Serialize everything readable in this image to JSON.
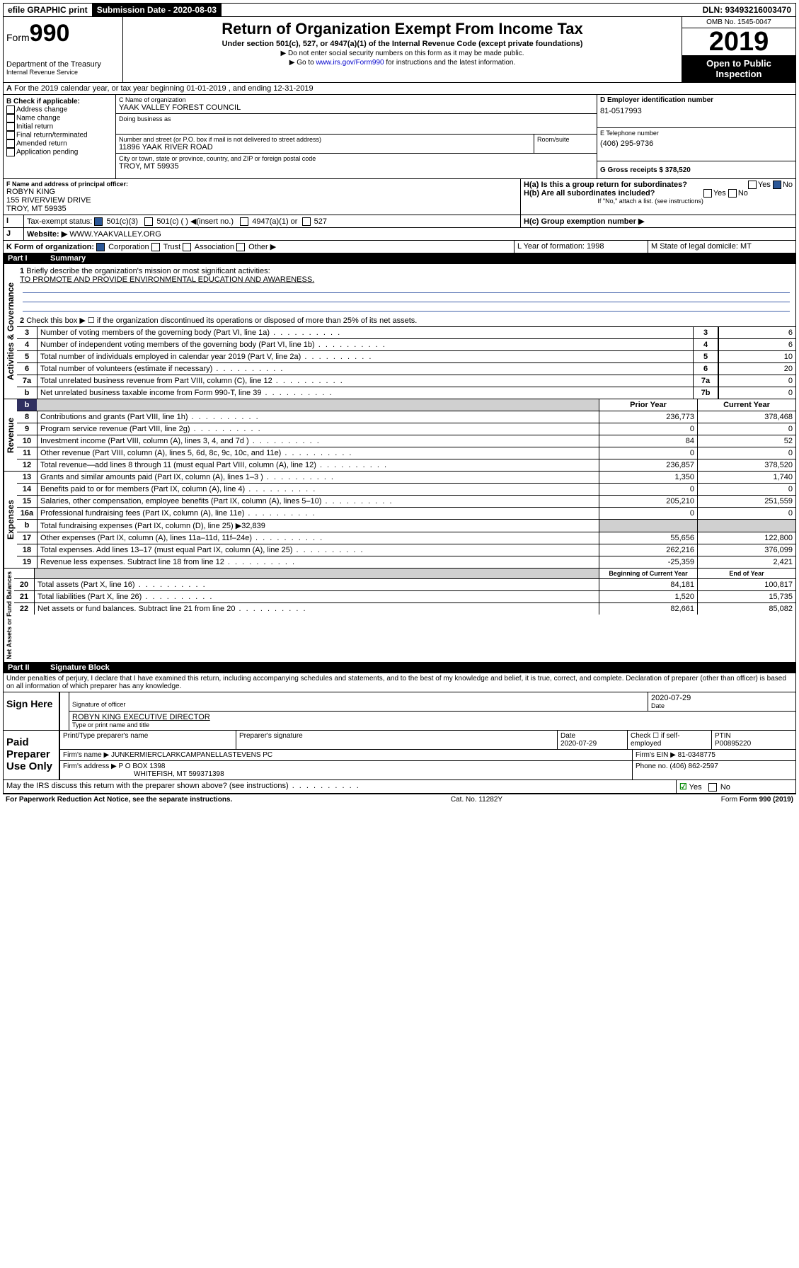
{
  "topbar": {
    "efile": "efile GRAPHIC print",
    "sub_label": "Submission Date - 2020-08-03",
    "dln": "DLN: 93493216003470"
  },
  "header": {
    "form_word": "Form",
    "form_num": "990",
    "title": "Return of Organization Exempt From Income Tax",
    "subtitle": "Under section 501(c), 527, or 4947(a)(1) of the Internal Revenue Code (except private foundations)",
    "instr1": "▶ Do not enter social security numbers on this form as it may be made public.",
    "instr2_pre": "▶ Go to ",
    "instr2_link": "www.irs.gov/Form990",
    "instr2_post": " for instructions and the latest information.",
    "dept1": "Department of the Treasury",
    "dept2": "Internal Revenue Service",
    "omb": "OMB No. 1545-0047",
    "year": "2019",
    "open": "Open to Public Inspection"
  },
  "period": {
    "line_a": "For the 2019 calendar year, or tax year beginning 01-01-2019    , and ending 12-31-2019"
  },
  "boxB": {
    "label": "B Check if applicable:",
    "opts": [
      "Address change",
      "Name change",
      "Initial return",
      "Final return/terminated",
      "Amended return",
      "Application pending"
    ]
  },
  "boxC": {
    "name_label": "C Name of organization",
    "name": "YAAK VALLEY FOREST COUNCIL",
    "dba_label": "Doing business as",
    "addr_label": "Number and street (or P.O. box if mail is not delivered to street address)",
    "room_label": "Room/suite",
    "addr": "11896 YAAK RIVER ROAD",
    "city_label": "City or town, state or province, country, and ZIP or foreign postal code",
    "city": "TROY, MT  59935"
  },
  "boxD": {
    "label": "D Employer identification number",
    "val": "81-0517993"
  },
  "boxE": {
    "label": "E Telephone number",
    "val": "(406) 295-9736"
  },
  "boxG": {
    "label": "G Gross receipts $ 378,520"
  },
  "boxF": {
    "label": "F  Name and address of principal officer:",
    "name": "ROBYN KING",
    "addr1": "155 RIVERVIEW DRIVE",
    "addr2": "TROY, MT  59935"
  },
  "boxH": {
    "a": "H(a)  Is this a group return for subordinates?",
    "b": "H(b)  Are all subordinates included?",
    "note": "If \"No,\" attach a list. (see instructions)",
    "c": "H(c)  Group exemption number ▶",
    "yes": "Yes",
    "no": "No"
  },
  "boxI": {
    "label": "Tax-exempt status:",
    "o1": "501(c)(3)",
    "o2": "501(c) (  ) ◀(insert no.)",
    "o3": "4947(a)(1) or",
    "o4": "527"
  },
  "boxJ": {
    "label": "Website: ▶",
    "val": "WWW.YAAKVALLEY.ORG"
  },
  "boxK": {
    "label": "K Form of organization:",
    "o1": "Corporation",
    "o2": "Trust",
    "o3": "Association",
    "o4": "Other ▶"
  },
  "boxL": {
    "label": "L Year of formation: 1998"
  },
  "boxM": {
    "label": "M State of legal domicile: MT"
  },
  "part1": {
    "num": "Part I",
    "title": "Summary"
  },
  "summary": {
    "l1_label": "Briefly describe the organization's mission or most significant activities:",
    "l1_text": "TO PROMOTE AND PROVIDE ENVIRONMENTAL EDUCATION AND AWARENESS.",
    "l2": "Check this box ▶ ☐  if the organization discontinued its operations or disposed of more than 25% of its net assets.",
    "lines": [
      {
        "n": "3",
        "t": "Number of voting members of the governing body (Part VI, line 1a)",
        "b": "3",
        "v": "6"
      },
      {
        "n": "4",
        "t": "Number of independent voting members of the governing body (Part VI, line 1b)",
        "b": "4",
        "v": "6"
      },
      {
        "n": "5",
        "t": "Total number of individuals employed in calendar year 2019 (Part V, line 2a)",
        "b": "5",
        "v": "10"
      },
      {
        "n": "6",
        "t": "Total number of volunteers (estimate if necessary)",
        "b": "6",
        "v": "20"
      },
      {
        "n": "7a",
        "t": "Total unrelated business revenue from Part VIII, column (C), line 12",
        "b": "7a",
        "v": "0"
      },
      {
        "n": "b",
        "t": "Net unrelated business taxable income from Form 990-T, line 39",
        "b": "7b",
        "v": "0"
      }
    ],
    "col_prior": "Prior Year",
    "col_curr": "Current Year",
    "rev": [
      {
        "n": "8",
        "t": "Contributions and grants (Part VIII, line 1h)",
        "p": "236,773",
        "c": "378,468"
      },
      {
        "n": "9",
        "t": "Program service revenue (Part VIII, line 2g)",
        "p": "0",
        "c": "0"
      },
      {
        "n": "10",
        "t": "Investment income (Part VIII, column (A), lines 3, 4, and 7d )",
        "p": "84",
        "c": "52"
      },
      {
        "n": "11",
        "t": "Other revenue (Part VIII, column (A), lines 5, 6d, 8c, 9c, 10c, and 11e)",
        "p": "0",
        "c": "0"
      },
      {
        "n": "12",
        "t": "Total revenue—add lines 8 through 11 (must equal Part VIII, column (A), line 12)",
        "p": "236,857",
        "c": "378,520"
      }
    ],
    "exp": [
      {
        "n": "13",
        "t": "Grants and similar amounts paid (Part IX, column (A), lines 1–3 )",
        "p": "1,350",
        "c": "1,740"
      },
      {
        "n": "14",
        "t": "Benefits paid to or for members (Part IX, column (A), line 4)",
        "p": "0",
        "c": "0"
      },
      {
        "n": "15",
        "t": "Salaries, other compensation, employee benefits (Part IX, column (A), lines 5–10)",
        "p": "205,210",
        "c": "251,559"
      },
      {
        "n": "16a",
        "t": "Professional fundraising fees (Part IX, column (A), line 11e)",
        "p": "0",
        "c": "0"
      },
      {
        "n": "b",
        "t": "Total fundraising expenses (Part IX, column (D), line 25) ▶32,839",
        "p": "",
        "c": "",
        "gray": true
      },
      {
        "n": "17",
        "t": "Other expenses (Part IX, column (A), lines 11a–11d, 11f–24e)",
        "p": "55,656",
        "c": "122,800"
      },
      {
        "n": "18",
        "t": "Total expenses. Add lines 13–17 (must equal Part IX, column (A), line 25)",
        "p": "262,216",
        "c": "376,099"
      },
      {
        "n": "19",
        "t": "Revenue less expenses. Subtract line 18 from line 12",
        "p": "-25,359",
        "c": "2,421"
      }
    ],
    "col_beg": "Beginning of Current Year",
    "col_end": "End of Year",
    "net": [
      {
        "n": "20",
        "t": "Total assets (Part X, line 16)",
        "p": "84,181",
        "c": "100,817"
      },
      {
        "n": "21",
        "t": "Total liabilities (Part X, line 26)",
        "p": "1,520",
        "c": "15,735"
      },
      {
        "n": "22",
        "t": "Net assets or fund balances. Subtract line 21 from line 20",
        "p": "82,661",
        "c": "85,082"
      }
    ],
    "vlab_gov": "Activities & Governance",
    "vlab_rev": "Revenue",
    "vlab_exp": "Expenses",
    "vlab_net": "Net Assets or Fund Balances"
  },
  "part2": {
    "num": "Part II",
    "title": "Signature Block"
  },
  "perjury": "Under penalties of perjury, I declare that I have examined this return, including accompanying schedules and statements, and to the best of my knowledge and belief, it is true, correct, and complete. Declaration of preparer (other than officer) is based on all information of which preparer has any knowledge.",
  "sign": {
    "here": "Sign Here",
    "sig_label": "Signature of officer",
    "date": "2020-07-29",
    "date_label": "Date",
    "name": "ROBYN KING  EXECUTIVE DIRECTOR",
    "name_label": "Type or print name and title"
  },
  "paid": {
    "label": "Paid Preparer Use Only",
    "h_name": "Print/Type preparer's name",
    "h_sig": "Preparer's signature",
    "h_date": "Date",
    "date": "2020-07-29",
    "h_check": "Check ☐ if self-employed",
    "h_ptin": "PTIN",
    "ptin": "P00895220",
    "firm_label": "Firm's name    ▶",
    "firm": "JUNKERMIERCLARKCAMPANELLASTEVENS PC",
    "ein_label": "Firm's EIN ▶",
    "ein": "81-0348775",
    "addr_label": "Firm's address ▶",
    "addr1": "P O BOX 1398",
    "addr2": "WHITEFISH, MT  599371398",
    "phone_label": "Phone no.",
    "phone": "(406) 862-2597"
  },
  "discuss": {
    "text": "May the IRS discuss this return with the preparer shown above? (see instructions)",
    "yes": "Yes",
    "no": "No"
  },
  "footer": {
    "pra": "For Paperwork Reduction Act Notice, see the separate instructions.",
    "cat": "Cat. No. 11282Y",
    "form": "Form 990 (2019)"
  }
}
